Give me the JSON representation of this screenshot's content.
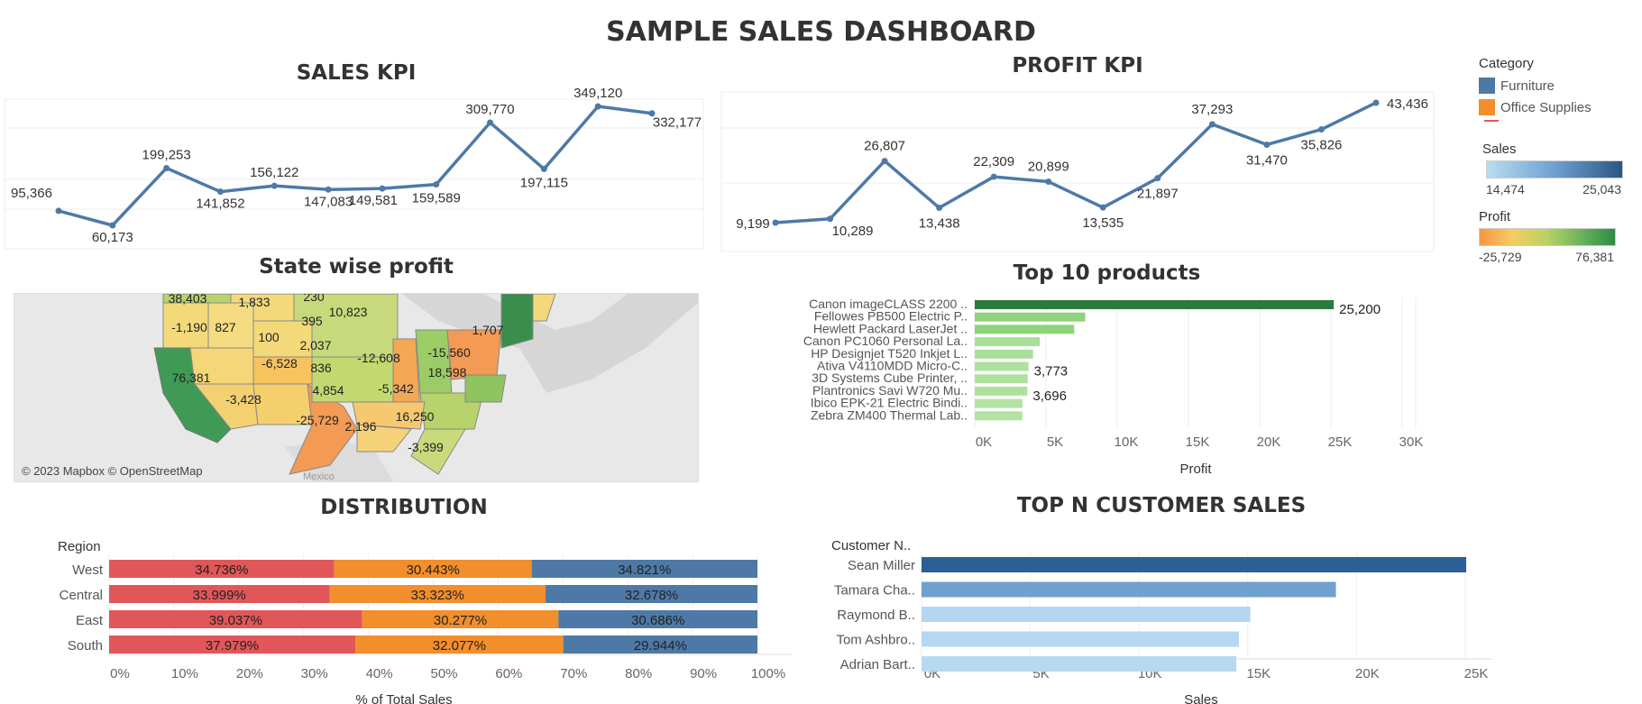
{
  "dashboard": {
    "title": "SAMPLE SALES DASHBOARD"
  },
  "sales_kpi": {
    "title": "SALES KPI"
  },
  "profit_kpi": {
    "title": "PROFIT KPI"
  },
  "state_map": {
    "title": "State wise profit",
    "credit": "© 2023 Mapbox © OpenStreetMap",
    "country_label": "Mexico"
  },
  "top_products": {
    "title": "Top 10 products"
  },
  "distribution": {
    "title": "DISTRIBUTION"
  },
  "top_customers": {
    "title": "TOP N CUSTOMER SALES"
  },
  "legend": {
    "category_title": "Category",
    "categories": [
      {
        "label": "Furniture",
        "color": "#4e79a7"
      },
      {
        "label": "Office Supplies",
        "color": "#f28e2b"
      }
    ],
    "sales_title": "Sales",
    "sales_min": "14,474",
    "sales_max": "25,043",
    "profit_title": "Profit",
    "profit_min": "-25,729",
    "profit_max": "76,381"
  },
  "chart_data": [
    {
      "id": "sales_kpi",
      "type": "line",
      "values": [
        95366,
        60173,
        199253,
        141852,
        156122,
        147083,
        149581,
        159589,
        309770,
        197115,
        349120,
        332177
      ],
      "labels": [
        "95,366",
        "60,173",
        "199,253",
        "141,852",
        "156,122",
        "147,083",
        "149,581",
        "159,589",
        "309,770",
        "197,115",
        "349,120",
        "332,177"
      ],
      "color": "#4e79a7"
    },
    {
      "id": "profit_kpi",
      "type": "line",
      "values": [
        9199,
        10289,
        26807,
        13438,
        22309,
        20899,
        13535,
        21897,
        37293,
        31470,
        35826,
        43436
      ],
      "labels": [
        "9,199",
        "10,289",
        "26,807",
        "13,438",
        "22,309",
        "20,899",
        "13,535",
        "21,897",
        "37,293",
        "31,470",
        "35,826",
        "43,436"
      ],
      "color": "#4e79a7"
    },
    {
      "id": "state_map",
      "type": "map",
      "labels": [
        "38,403",
        "1,833",
        "230",
        "10,823",
        "-1,190",
        "827",
        "395",
        "100",
        "1,707",
        "2,037",
        "-12,608",
        "-15,560",
        "-6,528",
        "836",
        "18,598",
        "76,381",
        "4,854",
        "-5,342",
        "-3,428",
        "16,250",
        "-25,729",
        "2,196",
        "-3,399"
      ]
    },
    {
      "id": "top_products",
      "type": "bar",
      "orientation": "horizontal",
      "categories": [
        "Canon imageCLASS 2200 ..",
        "Fellowes PB500 Electric P..",
        "Hewlett Packard LaserJet ..",
        "Canon PC1060 Personal La..",
        "HP Designjet T520 Inkjet L..",
        "Ativa V4110MDD Micro-C..",
        "3D Systems Cube Printer, ..",
        "Plantronics Savi W720 Mu..",
        "Ibico EPK-21 Electric Bindi..",
        "Zebra ZM400 Thermal Lab.."
      ],
      "values": [
        25200,
        7753,
        6984,
        4571,
        4095,
        3773,
        3717,
        3696,
        3345,
        3343
      ],
      "data_labels": [
        "25,200",
        "",
        "",
        "",
        "",
        "3,773",
        "",
        "3,696",
        "",
        ""
      ],
      "xlabel": "Profit",
      "xlim": [
        0,
        30000
      ],
      "xticks": [
        "0K",
        "5K",
        "10K",
        "15K",
        "20K",
        "25K",
        "30K"
      ]
    },
    {
      "id": "distribution",
      "type": "bar",
      "orientation": "horizontal",
      "stacked": true,
      "row_header": "Region",
      "categories": [
        "West",
        "Central",
        "East",
        "South"
      ],
      "series": [
        {
          "values": [
            34.736,
            33.999,
            39.037,
            37.979
          ],
          "labels": [
            "34.736%",
            "33.999%",
            "39.037%",
            "37.979%"
          ],
          "color": "#e15759"
        },
        {
          "values": [
            30.443,
            33.323,
            30.277,
            32.077
          ],
          "labels": [
            "30.443%",
            "33.323%",
            "30.277%",
            "32.077%"
          ],
          "color": "#f28e2b"
        },
        {
          "values": [
            34.821,
            32.678,
            30.686,
            29.944
          ],
          "labels": [
            "34.821%",
            "32.678%",
            "30.686%",
            "29.944%"
          ],
          "color": "#4e79a7"
        }
      ],
      "xlabel": "% of Total Sales",
      "xticks": [
        "0%",
        "10%",
        "20%",
        "30%",
        "40%",
        "50%",
        "60%",
        "70%",
        "80%",
        "90%",
        "100%"
      ]
    },
    {
      "id": "top_customers",
      "type": "bar",
      "orientation": "horizontal",
      "row_header": "Customer N..",
      "categories": [
        "Sean Miller",
        "Tamara Cha..",
        "Raymond B..",
        "Tom Ashbro..",
        "Adrian Bart.."
      ],
      "values": [
        25043,
        19052,
        15117,
        14596,
        14474
      ],
      "colors": [
        "#2c5f94",
        "#6fa0d0",
        "#b4d6f0",
        "#b6d7f1",
        "#b7d8f1"
      ],
      "xlabel": "Sales",
      "xlim": [
        0,
        25000
      ],
      "xticks": [
        "0K",
        "5K",
        "10K",
        "15K",
        "20K",
        "25K"
      ]
    }
  ]
}
